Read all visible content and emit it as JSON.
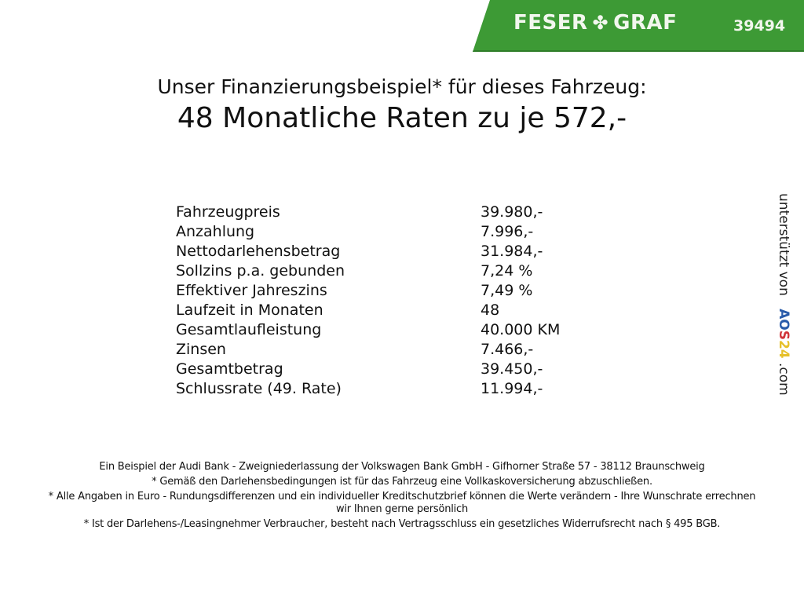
{
  "header": {
    "brand": "FESER",
    "brand2": "GRAF",
    "logo_icon": "clover-icon",
    "code": "39494",
    "brand_color": "#3d9a35"
  },
  "heading": {
    "subtitle": "Unser Finanzierungsbeispiel* für dieses Fahrzeug:",
    "title": "48 Monatliche Raten zu je 572,-"
  },
  "rows": [
    {
      "label": "Fahrzeugpreis",
      "value": "39.980,-"
    },
    {
      "label": "Anzahlung",
      "value": "7.996,-"
    },
    {
      "label": "Nettodarlehensbetrag",
      "value": "31.984,-"
    },
    {
      "label": "Sollzins p.a. gebunden",
      "value": "7,24 %"
    },
    {
      "label": "Effektiver Jahreszins",
      "value": "7,49 %"
    },
    {
      "label": "Laufzeit in Monaten",
      "value": "48"
    },
    {
      "label": "Gesamtlaufleistung",
      "value": "40.000 KM"
    },
    {
      "label": "Zinsen",
      "value": "7.466,-"
    },
    {
      "label": "Gesamtbetrag",
      "value": "39.450,-"
    },
    {
      "label": "Schlussrate (49. Rate)",
      "value": "11.994,-"
    }
  ],
  "side": {
    "text": "unterstützt von",
    "logo_a": "AO",
    "logo_b": "S",
    "logo_c": "24",
    "suffix": ".com"
  },
  "footer": [
    "Ein Beispiel der Audi Bank - Zweigniederlassung der Volkswagen Bank GmbH - Gifhorner Straße 57 - 38112 Braunschweig",
    "* Gemäß den Darlehensbedingungen ist für das Fahrzeug eine Vollkaskoversicherung abzuschließen.",
    "* Alle Angaben in Euro - Rundungsdifferenzen und ein individueller Kreditschutzbrief können die Werte verändern - Ihre Wunschrate errechnen wir Ihnen gerne persönlich",
    "* Ist der Darlehens-/Leasingnehmer Verbraucher, besteht nach Vertragsschluss ein gesetzliches Widerrufsrecht nach § 495 BGB."
  ]
}
